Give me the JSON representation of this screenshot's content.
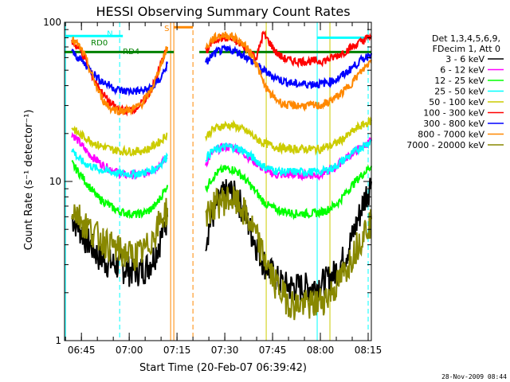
{
  "chart_data": {
    "type": "line",
    "title": "HESSI Observing Summary Count Rates",
    "xlabel": "Start Time (20-Feb-07 06:39:42)",
    "ylabel": "Count Rate (s⁻¹ detector⁻¹)",
    "y_scale": "log",
    "xlim": [
      "06:39:42",
      "08:16:00"
    ],
    "ylim": [
      1,
      100
    ],
    "x_ticks": [
      "06:45",
      "07:00",
      "07:15",
      "07:30",
      "07:45",
      "08:00",
      "08:15"
    ],
    "y_ticks": [
      "1",
      "10",
      "100"
    ],
    "grid": false,
    "legend_position": "right",
    "legend_header": [
      "Det 1,3,4,5,6,9,",
      "FDecim 1, Att 0"
    ],
    "x": [
      "06:42",
      "06:44",
      "06:46",
      "06:48",
      "06:50",
      "06:52",
      "06:54",
      "06:56",
      "06:58",
      "07:00",
      "07:02",
      "07:04",
      "07:06",
      "07:08",
      "07:10",
      "07:12",
      "07:24",
      "07:26",
      "07:28",
      "07:30",
      "07:32",
      "07:34",
      "07:36",
      "07:38",
      "07:40",
      "07:42",
      "07:44",
      "07:46",
      "07:48",
      "07:50",
      "07:52",
      "07:54",
      "07:56",
      "07:58",
      "08:00",
      "08:02",
      "08:04",
      "08:06",
      "08:08",
      "08:10",
      "08:12",
      "08:14",
      "08:16"
    ],
    "series": [
      {
        "name": "3 - 6 keV",
        "color": "#000000",
        "values": [
          6,
          5.3,
          4.5,
          4,
          3.5,
          3.2,
          3.1,
          3,
          2.9,
          2.8,
          2.8,
          2.8,
          3,
          3.5,
          4.5,
          6,
          4.5,
          6,
          7.5,
          8.5,
          8.6,
          8,
          6.5,
          5,
          4,
          3.2,
          2.8,
          2.5,
          2.3,
          2.2,
          2.2,
          2.2,
          2.2,
          2.2,
          2.3,
          2.4,
          2.6,
          3,
          3.5,
          4.5,
          6,
          8,
          10
        ]
      },
      {
        "name": "6 - 12 keV",
        "color": "#ff00ff",
        "values": [
          20,
          18,
          16,
          14.5,
          13.5,
          12.5,
          12,
          11.5,
          11,
          11,
          11,
          11,
          11.5,
          12,
          13,
          14,
          13,
          15,
          16,
          16.5,
          16.5,
          16,
          15,
          14,
          13,
          12,
          11.5,
          11,
          11,
          11,
          11,
          11,
          11,
          11,
          11,
          11.5,
          12,
          13,
          14,
          15,
          16,
          17,
          18
        ]
      },
      {
        "name": "12 - 25 keV",
        "color": "#00ff00",
        "values": [
          13,
          11.5,
          10.2,
          9,
          8,
          7.5,
          7,
          6.6,
          6.4,
          6.3,
          6.2,
          6.3,
          6.5,
          7,
          8,
          9.5,
          9,
          10.5,
          11.5,
          12,
          12,
          11.5,
          10.5,
          9.5,
          8.5,
          7.5,
          7,
          6.7,
          6.5,
          6.4,
          6.3,
          6.3,
          6.3,
          6.3,
          6.4,
          6.6,
          7,
          7.5,
          8.5,
          9.5,
          10.5,
          11.5,
          12.5
        ]
      },
      {
        "name": "25 - 50 keV",
        "color": "#00ffff",
        "values": [
          16,
          14,
          13,
          12.5,
          12,
          11.7,
          11.5,
          11.3,
          11.2,
          11.2,
          11.2,
          11.3,
          11.6,
          12,
          13,
          14.5,
          14,
          15.5,
          16,
          16.5,
          16.5,
          16.2,
          15.5,
          14.5,
          13.5,
          12.5,
          12,
          11.7,
          11.5,
          11.5,
          11.5,
          11.5,
          11.5,
          11.5,
          11.5,
          11.8,
          12.2,
          13,
          14,
          15,
          16,
          17,
          18
        ]
      },
      {
        "name": "50 - 100 keV",
        "color": "#cccc00",
        "values": [
          22,
          20,
          19,
          18,
          17,
          16.5,
          16,
          15.7,
          15.5,
          15.5,
          15.5,
          15.6,
          16,
          17,
          18,
          20,
          19,
          21,
          22,
          22.5,
          22.5,
          22,
          21,
          20,
          18.5,
          17.5,
          17,
          16.5,
          16.2,
          16,
          16,
          16,
          16,
          16,
          16,
          16.5,
          17,
          18,
          19,
          20.5,
          22,
          23,
          24
        ]
      },
      {
        "name": "100 - 300 keV",
        "color": "#ff0000",
        "values": [
          75,
          70,
          60,
          48,
          40,
          35,
          31,
          29,
          28,
          28,
          29,
          31,
          35,
          42,
          55,
          70,
          65,
          75,
          80,
          80,
          78,
          75,
          70,
          65,
          60,
          85,
          75,
          65,
          60,
          58,
          57,
          57,
          57,
          57,
          57,
          58,
          60,
          63,
          66,
          70,
          74,
          78,
          82
        ]
      },
      {
        "name": "300 - 800 keV",
        "color": "#0000ff",
        "values": [
          65,
          60,
          55,
          50,
          45,
          42,
          40,
          38,
          37,
          37,
          37,
          37,
          38,
          40,
          45,
          55,
          55,
          62,
          66,
          67,
          67,
          65,
          62,
          58,
          54,
          50,
          47,
          45,
          43,
          42,
          41,
          41,
          41,
          41,
          41,
          42,
          43,
          45,
          48,
          52,
          56,
          60,
          64
        ]
      },
      {
        "name": "800 - 7000 keV",
        "color": "#ff8800",
        "values": [
          78,
          72,
          62,
          48,
          38,
          32,
          29,
          28,
          28,
          28,
          29,
          31,
          35,
          42,
          55,
          70,
          68,
          78,
          82,
          83,
          82,
          78,
          72,
          65,
          55,
          42,
          36,
          33,
          31,
          30,
          30,
          30,
          30,
          30,
          30,
          31,
          33,
          35,
          38,
          42,
          47,
          52,
          58
        ]
      },
      {
        "name": "7000 - 20000 keV",
        "color": "#888800",
        "values": [
          7,
          6.2,
          5.5,
          5,
          4.6,
          4.3,
          4,
          3.8,
          3.6,
          3.5,
          3.5,
          3.6,
          4,
          4.8,
          5.8,
          6.8,
          6,
          7,
          7.5,
          7.8,
          7.8,
          7.3,
          6.5,
          5.5,
          4.5,
          3.5,
          2.8,
          2.3,
          2,
          1.8,
          1.7,
          1.7,
          1.7,
          1.7,
          1.8,
          1.9,
          2.1,
          2.4,
          2.8,
          3.5,
          4.2,
          5,
          5.8
        ]
      }
    ],
    "attenuator_level": {
      "color": "#008000",
      "value": 65
    },
    "annotations": [
      "N",
      "RD0",
      "RD4",
      "S"
    ],
    "vertical_markers": [
      {
        "time": "06:40",
        "color": "#00ffff",
        "style": "solid"
      },
      {
        "time": "06:57",
        "color": "#00ffff",
        "style": "dashed"
      },
      {
        "time": "07:13",
        "color": "#ff8800",
        "style": "solid"
      },
      {
        "time": "07:14",
        "color": "#ff8800",
        "style": "solid"
      },
      {
        "time": "07:20",
        "color": "#ff8800",
        "style": "dashed"
      },
      {
        "time": "07:43",
        "color": "#cccc00",
        "style": "solid"
      },
      {
        "time": "07:59",
        "color": "#00ffff",
        "style": "solid"
      },
      {
        "time": "08:03",
        "color": "#cccc00",
        "style": "solid"
      },
      {
        "time": "08:15",
        "color": "#00ffff",
        "style": "dashed"
      }
    ],
    "flag_bars": [
      {
        "label": "N",
        "color": "#00ffff",
        "value": 82,
        "from": "06:40",
        "to": "06:58"
      },
      {
        "label": "N",
        "color": "#00ffff",
        "value": 80,
        "from": "07:59",
        "to": "08:16"
      },
      {
        "label": "S",
        "color": "#ff8800",
        "value": 93,
        "from": "07:14",
        "to": "07:20"
      }
    ],
    "footer_timestamp": "28-Nov-2009 08:44"
  }
}
